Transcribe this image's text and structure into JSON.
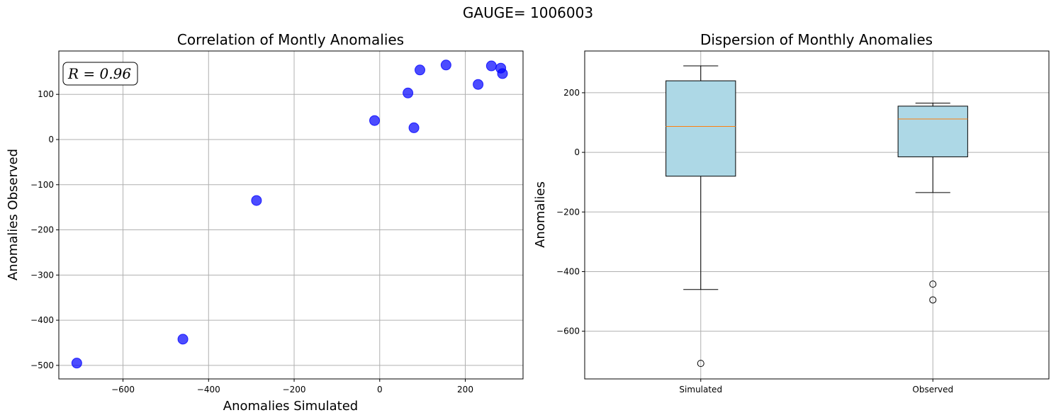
{
  "suptitle": "GAUGE= 1006003",
  "chart_data": [
    {
      "type": "scatter",
      "title": "Correlation of Montly Anomalies",
      "xlabel": "Anomalies Simulated",
      "ylabel": "Anomalies Observed",
      "xlim": [
        -750,
        335
      ],
      "ylim": [
        -530,
        196
      ],
      "xticks": [
        -600,
        -400,
        -200,
        0,
        200
      ],
      "xtick_labels": [
        "−600",
        "−400",
        "−200",
        "0",
        "200"
      ],
      "yticks": [
        -500,
        -400,
        -300,
        -200,
        -100,
        0,
        100
      ],
      "ytick_labels": [
        "−500",
        "−400",
        "−300",
        "−200",
        "−100",
        "0",
        "100"
      ],
      "grid": true,
      "point_color": "#0000ff",
      "annotation": "R = 0.96",
      "annotation_placement": "top-left",
      "x": [
        -708,
        -460,
        -288,
        -12,
        66,
        80,
        94,
        155,
        230,
        261,
        283,
        287
      ],
      "y": [
        -495,
        -442,
        -135,
        42,
        103,
        26,
        154,
        165,
        122,
        163,
        158,
        146
      ]
    },
    {
      "type": "box",
      "title": "Dispersion of Monthly Anomalies",
      "ylabel": "Anomalies",
      "categories": [
        "Simulated",
        "Observed"
      ],
      "ylim": [
        -760,
        340
      ],
      "yticks": [
        -600,
        -400,
        -200,
        0,
        200
      ],
      "ytick_labels": [
        "−600",
        "−400",
        "−200",
        "0",
        "200"
      ],
      "grid": true,
      "box_color": "#add8e6",
      "median_color": "#ff7f0e",
      "series": [
        {
          "whisker_low": -460,
          "q1": -80,
          "median": 87,
          "q3": 240,
          "whisker_high": 290,
          "outliers": [
            -708
          ]
        },
        {
          "whisker_low": -135,
          "q1": -15,
          "median": 112,
          "q3": 155,
          "whisker_high": 165,
          "outliers": [
            -442,
            -495
          ]
        }
      ]
    }
  ]
}
